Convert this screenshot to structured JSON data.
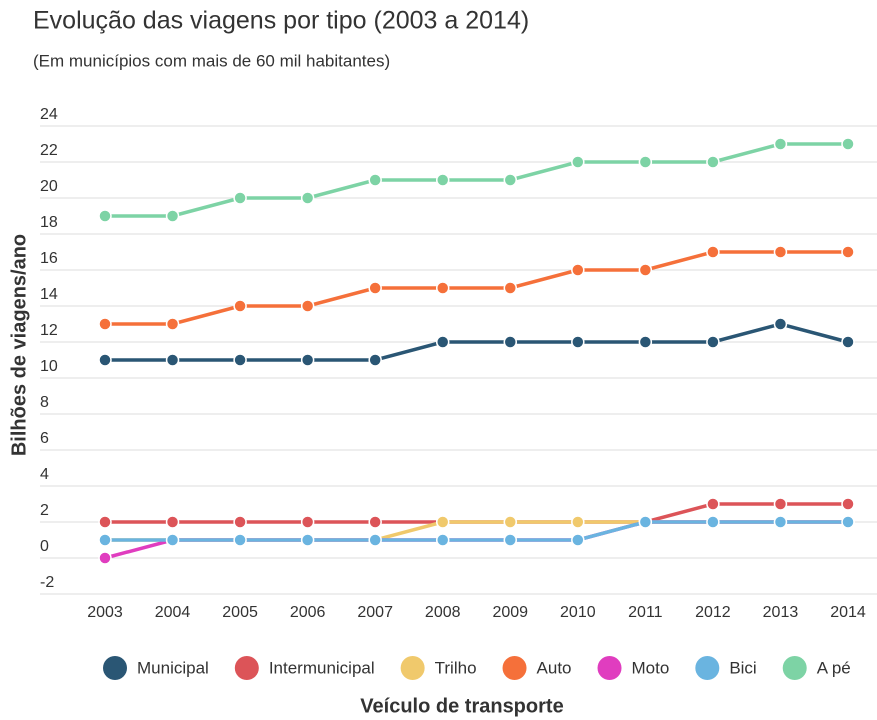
{
  "chart_data": {
    "type": "line",
    "title": "Evolução das viagens por tipo (2003 a 2014)",
    "subtitle": "(Em municípios com mais de 60 mil habitantes)",
    "x_label": "Veículo de transporte",
    "y_label": "Bilhões de viagens/ano",
    "categories": [
      "2003",
      "2004",
      "2005",
      "2006",
      "2007",
      "2008",
      "2009",
      "2010",
      "2011",
      "2012",
      "2013",
      "2014"
    ],
    "ylim": [
      -2,
      24
    ],
    "yticks": [
      -2,
      0,
      2,
      4,
      6,
      8,
      10,
      12,
      14,
      16,
      18,
      20,
      22,
      24
    ],
    "grid": true,
    "legend": "bottom",
    "series": [
      {
        "name": "Municipal",
        "color": "#2a5674",
        "values": [
          11,
          11,
          11,
          11,
          11,
          12,
          12,
          12,
          12,
          12,
          13,
          12
        ]
      },
      {
        "name": "Intermunicipal",
        "color": "#dc5458",
        "values": [
          2,
          2,
          2,
          2,
          2,
          2,
          2,
          2,
          2,
          3,
          3,
          3
        ]
      },
      {
        "name": "Trilho",
        "color": "#f0c96c",
        "values": [
          1,
          1,
          1,
          1,
          1,
          2,
          2,
          2,
          2,
          2,
          2,
          2
        ]
      },
      {
        "name": "Auto",
        "color": "#f5703a",
        "values": [
          13,
          13,
          14,
          14,
          15,
          15,
          15,
          16,
          16,
          17,
          17,
          17
        ]
      },
      {
        "name": "Moto",
        "color": "#e03dbf",
        "values": [
          0,
          1,
          1,
          1,
          1,
          1,
          1,
          1,
          2,
          2,
          2,
          2
        ]
      },
      {
        "name": "Bici",
        "color": "#6ab4e0",
        "values": [
          1,
          1,
          1,
          1,
          1,
          1,
          1,
          1,
          2,
          2,
          2,
          2
        ]
      },
      {
        "name": "A pé",
        "color": "#7dd3a5",
        "values": [
          19,
          19,
          20,
          20,
          21,
          21,
          21,
          22,
          22,
          22,
          23,
          23
        ]
      }
    ]
  }
}
